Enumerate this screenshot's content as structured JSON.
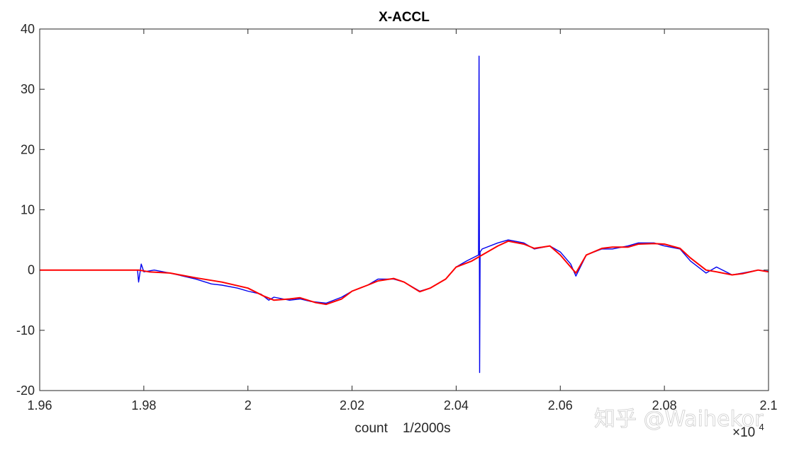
{
  "chart_data": {
    "type": "line",
    "title": "X-ACCL",
    "xlabel": "count    1/2000s",
    "ylabel": "",
    "x_exponent_label": "×10",
    "x_exponent_power": "4",
    "xlim": [
      1.96,
      2.1
    ],
    "ylim": [
      -20,
      40
    ],
    "xticks": [
      1.96,
      1.98,
      2,
      2.02,
      2.04,
      2.06,
      2.08,
      2.1
    ],
    "xtick_labels": [
      "1.96",
      "1.98",
      "2",
      "2.02",
      "2.04",
      "2.06",
      "2.08",
      "2.1"
    ],
    "yticks": [
      -20,
      -10,
      0,
      10,
      20,
      30,
      40
    ],
    "ytick_labels": [
      "-20",
      "-10",
      "0",
      "10",
      "20",
      "30",
      "40"
    ],
    "grid": false,
    "series": [
      {
        "color": "#0000ee",
        "x": [
          1.96,
          1.97,
          1.9788,
          1.979,
          1.9795,
          1.98,
          1.982,
          1.985,
          1.99,
          1.993,
          1.995,
          1.998,
          2.0,
          2.0025,
          2.004,
          2.005,
          2.008,
          2.01,
          2.012,
          2.015,
          2.018,
          2.02,
          2.023,
          2.025,
          2.028,
          2.03,
          2.033,
          2.035,
          2.038,
          2.04,
          2.042,
          2.0443,
          2.0444,
          2.0445,
          2.0446,
          2.045,
          2.048,
          2.05,
          2.053,
          2.055,
          2.058,
          2.06,
          2.062,
          2.063,
          2.065,
          2.068,
          2.07,
          2.073,
          2.075,
          2.078,
          2.08,
          2.083,
          2.085,
          2.088,
          2.09,
          2.093,
          2.095,
          2.098,
          2.1
        ],
        "y": [
          0,
          0,
          0,
          -2,
          1,
          -0.3,
          0,
          -0.5,
          -1.5,
          -2.3,
          -2.5,
          -3,
          -3.5,
          -4,
          -5,
          -4.5,
          -5,
          -4.8,
          -5.2,
          -5.5,
          -4.5,
          -3.5,
          -2.5,
          -1.5,
          -1.5,
          -2,
          -3.5,
          -3,
          -1.5,
          0.5,
          1.5,
          2.5,
          35.5,
          -17,
          3,
          3.5,
          4.5,
          5,
          4.5,
          3.5,
          4,
          3,
          1,
          -1,
          2.5,
          3.5,
          3.5,
          4,
          4.5,
          4.5,
          4,
          3.5,
          1.5,
          -0.5,
          0.5,
          -0.8,
          -0.5,
          0,
          -0.2
        ]
      },
      {
        "color": "#ff0000",
        "x": [
          1.96,
          1.97,
          1.979,
          1.981,
          1.985,
          1.99,
          1.995,
          2.0,
          2.003,
          2.005,
          2.008,
          2.01,
          2.013,
          2.015,
          2.018,
          2.02,
          2.023,
          2.025,
          2.028,
          2.03,
          2.033,
          2.035,
          2.038,
          2.04,
          2.043,
          2.045,
          2.048,
          2.05,
          2.053,
          2.055,
          2.058,
          2.06,
          2.063,
          2.065,
          2.068,
          2.07,
          2.073,
          2.075,
          2.078,
          2.08,
          2.083,
          2.085,
          2.088,
          2.09,
          2.093,
          2.095,
          2.098,
          2.1
        ],
        "y": [
          0,
          0,
          0,
          -0.3,
          -0.5,
          -1.3,
          -2,
          -3,
          -4.3,
          -5,
          -4.8,
          -4.6,
          -5.4,
          -5.7,
          -4.8,
          -3.5,
          -2.5,
          -1.8,
          -1.4,
          -2,
          -3.6,
          -3,
          -1.5,
          0.5,
          1.5,
          2.5,
          4,
          4.8,
          4.3,
          3.6,
          4,
          2.5,
          -0.5,
          2.5,
          3.6,
          3.8,
          3.8,
          4.3,
          4.4,
          4.3,
          3.6,
          2,
          0,
          -0.3,
          -0.8,
          -0.6,
          0,
          -0.3
        ]
      }
    ]
  },
  "watermark": "知乎 @Waihekor"
}
